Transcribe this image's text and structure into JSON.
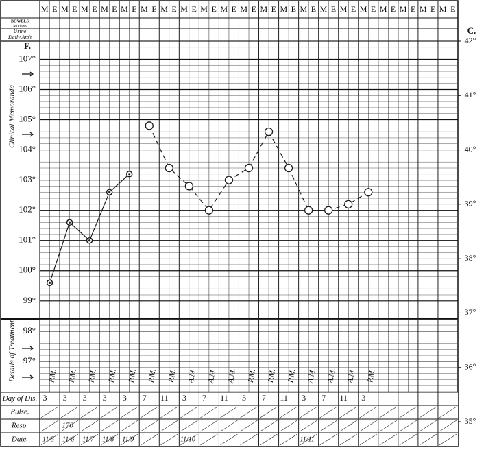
{
  "header": {
    "bowels": "BOWELS",
    "motions": "Motions",
    "urine": "Urine",
    "daily": "Daily Am't"
  },
  "chart_data": {
    "type": "line",
    "columns": [
      "M",
      "E",
      "M",
      "E",
      "M",
      "E",
      "M",
      "E",
      "M",
      "E",
      "M",
      "E",
      "M",
      "E",
      "M",
      "E",
      "M",
      "E",
      "M",
      "E",
      "M",
      "E",
      "M",
      "E",
      "M",
      "E",
      "M",
      "E",
      "M",
      "E",
      "M",
      "E",
      "M",
      "E",
      "M",
      "E",
      "M",
      "E",
      "M",
      "E",
      "M",
      "E"
    ],
    "y_label": "F.",
    "y2_label": "C.",
    "side_labels": [
      "Clinical Memoranda",
      "Details of Treatment"
    ],
    "ylim": [
      95,
      107.6
    ],
    "yticks": [
      {
        "value": 107,
        "label": "107°"
      },
      {
        "value": 106,
        "label": "106°"
      },
      {
        "value": 105,
        "label": "105°"
      },
      {
        "value": 104,
        "label": "104°"
      },
      {
        "value": 103,
        "label": "103°"
      },
      {
        "value": 102,
        "label": "102°"
      },
      {
        "value": 101,
        "label": "101°"
      },
      {
        "value": 100,
        "label": "100°"
      },
      {
        "value": 99,
        "label": "99°"
      },
      {
        "value": 98,
        "label": "98°"
      },
      {
        "value": 97,
        "label": "97°"
      }
    ],
    "y2lim": [
      35,
      42
    ],
    "y2ticks": [
      {
        "value": 42,
        "label": "42°"
      },
      {
        "value": 41,
        "label": "41°"
      },
      {
        "value": 40,
        "label": "40°"
      },
      {
        "value": 39,
        "label": "39°"
      },
      {
        "value": 38,
        "label": "38°"
      },
      {
        "value": 37,
        "label": "37°"
      },
      {
        "value": 36,
        "label": "36°"
      },
      {
        "value": 35,
        "label": "35°"
      }
    ],
    "grid": true,
    "categories": [
      "3",
      "3",
      "3",
      "3",
      "3",
      "7",
      "11",
      "3",
      "7",
      "11",
      "3",
      "7",
      "11",
      "3",
      "7",
      "11",
      "3"
    ],
    "series": [
      {
        "color": "#1a1a1a",
        "line": "solid",
        "marker": "dot",
        "values": [
          99.6,
          101.6,
          101.0,
          102.6,
          103.2,
          null,
          null,
          null,
          null,
          null,
          null,
          null,
          null,
          null,
          null,
          null,
          null
        ]
      },
      {
        "color": "#1a1a1a",
        "line": "dashed",
        "marker": "circle",
        "values": [
          null,
          null,
          null,
          null,
          null,
          104.8,
          103.4,
          102.8,
          102.0,
          103.0,
          103.4,
          104.6,
          103.4,
          102.0,
          102.0,
          102.2,
          102.6
        ]
      }
    ],
    "treatment": [
      "P.M.",
      "P.M.",
      "P.M.",
      "P.M.",
      "P.M.",
      "P.M.",
      "P.M.",
      "A.M.",
      "A.M.",
      "A.M.",
      "P.M.",
      "P.M.",
      "P.M.",
      "A.M.",
      "A.M.",
      "A.M.",
      "P.M."
    ],
    "row_labels": [
      "Day of Dis.",
      "Pulse.",
      "Resp.",
      "Date."
    ],
    "resp": [
      null,
      "170",
      null,
      null,
      null,
      null,
      null,
      null,
      null,
      null,
      null,
      null,
      null,
      null,
      null,
      null,
      null
    ],
    "dates": [
      "11/5",
      "11/6",
      "11/7",
      "11/8",
      "11/9",
      null,
      null,
      "11/10",
      null,
      null,
      null,
      null,
      null,
      "11/11",
      null,
      null,
      null
    ]
  }
}
